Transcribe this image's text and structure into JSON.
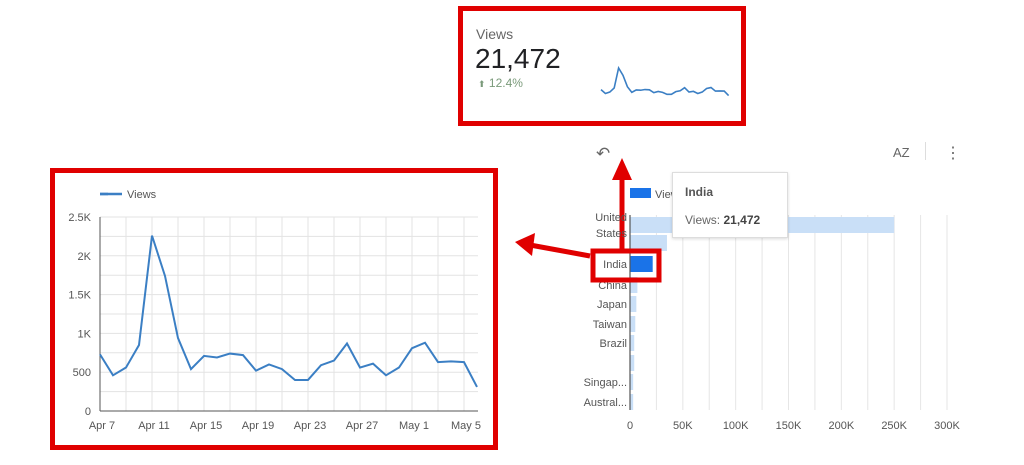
{
  "scorecard": {
    "title": "Views",
    "value": "21,472",
    "delta": "12.4%",
    "delta_icon": "arrow-up-icon",
    "colors": {
      "line": "#3b7fc4",
      "delta": "#7a9a7a"
    }
  },
  "toolbar": {
    "undo_icon": "undo-icon",
    "sort_icon": "sort-az-icon",
    "sort_label": "AZ",
    "more_icon": "more-vertical-icon"
  },
  "tooltip": {
    "title": "India",
    "label": "Views:",
    "value": "21,472"
  },
  "annotations": {
    "highlight_color": "#e00000"
  },
  "chart_data": [
    {
      "type": "line",
      "legend": [
        "Views"
      ],
      "legend_position": "top-left",
      "grid": true,
      "x_tick_labels": [
        "Apr 7",
        "Apr 11",
        "Apr 15",
        "Apr 19",
        "Apr 23",
        "Apr 27",
        "May 1",
        "May 5"
      ],
      "y_tick_labels": [
        "0",
        "500",
        "1K",
        "1.5K",
        "2K",
        "2.5K"
      ],
      "ylim": [
        0,
        2500
      ],
      "x": [
        "Apr 7",
        "Apr 8",
        "Apr 9",
        "Apr 10",
        "Apr 11",
        "Apr 12",
        "Apr 13",
        "Apr 14",
        "Apr 15",
        "Apr 16",
        "Apr 17",
        "Apr 18",
        "Apr 19",
        "Apr 20",
        "Apr 21",
        "Apr 22",
        "Apr 23",
        "Apr 24",
        "Apr 25",
        "Apr 26",
        "Apr 27",
        "Apr 28",
        "Apr 29",
        "Apr 30",
        "May 1",
        "May 2",
        "May 3",
        "May 4",
        "May 5",
        "May 6"
      ],
      "series": [
        {
          "name": "Views",
          "color": "#3b7fc4",
          "values": [
            730,
            460,
            560,
            850,
            2260,
            1740,
            940,
            540,
            710,
            690,
            740,
            720,
            520,
            600,
            540,
            400,
            400,
            590,
            650,
            870,
            560,
            610,
            460,
            560,
            810,
            880,
            630,
            640,
            630,
            310
          ]
        }
      ]
    },
    {
      "type": "bar",
      "orientation": "horizontal",
      "legend": [
        "Views"
      ],
      "legend_position": "top",
      "categories": [
        "United States",
        "",
        "India",
        "China",
        "Japan",
        "Taiwan",
        "Brazil",
        "",
        "Singap...",
        "Austral..."
      ],
      "values": [
        250000,
        35000,
        21472,
        7000,
        6000,
        5000,
        4000,
        4000,
        3000,
        3000
      ],
      "highlighted": "India",
      "x_tick_labels": [
        "0",
        "50K",
        "100K",
        "150K",
        "200K",
        "250K",
        "300K"
      ],
      "xlim": [
        0,
        300000
      ],
      "grid": true,
      "colors": {
        "bar": "#c9dff7",
        "highlight": "#1a73e8"
      }
    }
  ]
}
